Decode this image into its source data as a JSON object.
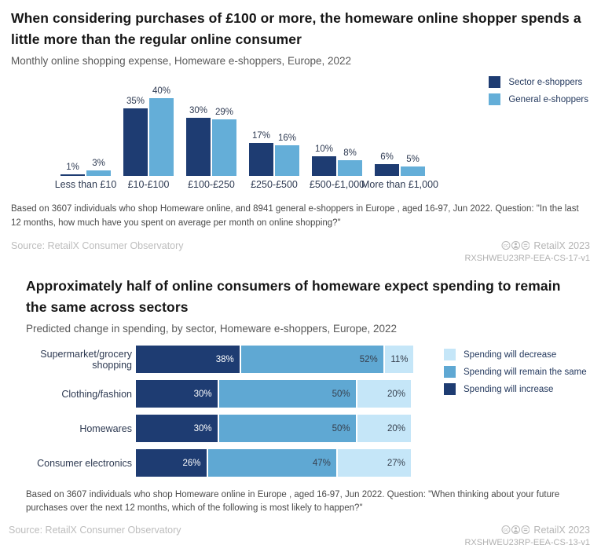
{
  "section1": {
    "title": "When considering purchases of £100 or more, the homeware online shopper spends a little more than the regular online consumer",
    "subtitle": "Monthly online shopping expense, Homeware e-shoppers, Europe, 2022",
    "footnote": "Based on 3607 individuals who shop Homeware online, and 8941 general e-shoppers in Europe , aged 16-97, Jun 2022. Question: \"In the last 12 months, how much have you spent on average per month on online shopping?\"",
    "source": "Source: RetailX Consumer Observatory",
    "brand": "RetailX 2023",
    "code": "RXSHWEU23RP-EEA-CS-17-v1"
  },
  "section2": {
    "title": "Approximately half of online consumers of homeware expect spending to remain the same across sectors",
    "subtitle": "Predicted change in spending, by sector, Homeware e-shoppers, Europe, 2022",
    "footnote": "Based on 3607 individuals who shop Homeware online in Europe , aged 16-97, Jun 2022. Question: \"When thinking about your future purchases over the next 12 months, which of the following is most likely to happen?\"",
    "source": "Source: RetailX Consumer Observatory",
    "brand": "RetailX 2023",
    "code": "RXSHWEU23RP-EEA-CS-13-v1"
  },
  "colors": {
    "dark_navy": "#1e3c72",
    "medium_blue": "#5fa8d3",
    "light_blue": "#64aed8",
    "pale_blue": "#c5e6f8",
    "value_label": "#2e3a52",
    "muted_gray": "#b5b5b5"
  },
  "chart_data": [
    {
      "type": "bar",
      "orientation": "vertical",
      "title": "Monthly online shopping expense, Homeware e-shoppers, Europe, 2022",
      "categories": [
        "Less than £10",
        "£10-£100",
        "£100-£250",
        "£250-£500",
        "£500-£1,000",
        "More than £1,000"
      ],
      "series": [
        {
          "name": "Sector e-shoppers",
          "color": "#1e3c72",
          "values": [
            1,
            35,
            30,
            17,
            10,
            6
          ]
        },
        {
          "name": "General e-shoppers",
          "color": "#64aed8",
          "values": [
            3,
            40,
            29,
            16,
            8,
            5
          ]
        }
      ],
      "value_suffix": "%",
      "ylim": [
        0,
        40
      ],
      "grid": false,
      "legend_position": "top-right"
    },
    {
      "type": "bar",
      "orientation": "horizontal",
      "stacked": true,
      "title": "Predicted change in spending, by sector, Homeware e-shoppers, Europe, 2022",
      "categories": [
        "Supermarket/grocery shopping",
        "Clothing/fashion",
        "Homewares",
        "Consumer electronics"
      ],
      "series": [
        {
          "name": "Spending will increase",
          "color": "#1e3c72",
          "values": [
            38,
            30,
            30,
            26
          ]
        },
        {
          "name": "Spending will remain the same",
          "color": "#5fa8d3",
          "values": [
            52,
            50,
            50,
            47
          ]
        },
        {
          "name": "Spending will decrease",
          "color": "#c5e6f8",
          "values": [
            11,
            20,
            20,
            27
          ]
        }
      ],
      "value_suffix": "%",
      "xlim": [
        0,
        100
      ],
      "grid": false,
      "legend_position": "right",
      "legend_order": "reversed"
    }
  ]
}
